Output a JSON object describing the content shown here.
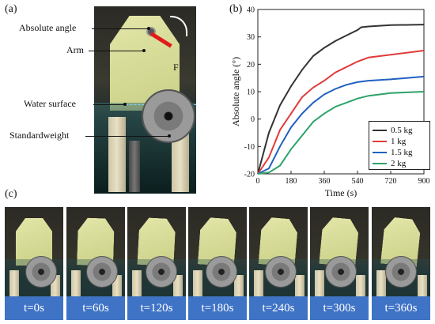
{
  "panels": {
    "a": "(a)",
    "b": "(b)",
    "c": "(c)"
  },
  "annotations": {
    "absolute_angle": "Absolute angle",
    "arm": "Arm",
    "water_surface": "Water surface",
    "standard_weight": "Standardweight",
    "force": "F"
  },
  "chart_data": {
    "type": "line",
    "title": "",
    "xlabel": "Time (s)",
    "ylabel": "Absolute angle (°)",
    "xlim": [
      0,
      900
    ],
    "ylim": [
      -20,
      40
    ],
    "x_ticks": [
      0,
      180,
      360,
      540,
      720,
      900
    ],
    "y_ticks": [
      -20,
      -10,
      0,
      10,
      20,
      30,
      40
    ],
    "grid": false,
    "legend_position": "bottom-right",
    "series": [
      {
        "name": "0.5 kg",
        "color": "#333333",
        "x": [
          0,
          60,
          120,
          180,
          240,
          300,
          360,
          420,
          480,
          540,
          560,
          600,
          720,
          900
        ],
        "y": [
          -20,
          -5,
          5,
          12,
          18,
          23,
          26,
          28.5,
          30.5,
          32.5,
          33.5,
          33.8,
          34.3,
          34.5
        ]
      },
      {
        "name": "1 kg",
        "color": "#e23a3a",
        "x": [
          0,
          60,
          120,
          180,
          240,
          300,
          360,
          420,
          480,
          540,
          600,
          720,
          900
        ],
        "y": [
          -20,
          -14,
          -4,
          2,
          8,
          11.5,
          14,
          17,
          19,
          21,
          22.5,
          23.5,
          25
        ]
      },
      {
        "name": "1.5 kg",
        "color": "#2060c0",
        "x": [
          0,
          60,
          120,
          180,
          240,
          300,
          360,
          420,
          480,
          540,
          600,
          720,
          900
        ],
        "y": [
          -20,
          -18,
          -10,
          -3,
          2,
          6,
          9,
          11,
          12.5,
          13.5,
          14,
          14.5,
          15.5
        ]
      },
      {
        "name": "2 kg",
        "color": "#2ea26a",
        "x": [
          0,
          60,
          120,
          180,
          240,
          300,
          360,
          420,
          480,
          540,
          600,
          720,
          900
        ],
        "y": [
          -20,
          -19.5,
          -17,
          -11,
          -6,
          -1,
          2,
          4.5,
          6,
          7.5,
          8.5,
          9.5,
          10
        ]
      }
    ]
  },
  "frames": [
    {
      "caption": "t=0s",
      "angle": 0
    },
    {
      "caption": "t=60s",
      "angle": 6
    },
    {
      "caption": "t=120s",
      "angle": 10
    },
    {
      "caption": "t=180s",
      "angle": 14
    },
    {
      "caption": "t=240s",
      "angle": 16
    },
    {
      "caption": "t=300s",
      "angle": 18
    },
    {
      "caption": "t=360s",
      "angle": 20
    }
  ],
  "colors": {
    "caption_bg": "#3f73c6",
    "arm": "#e01b1b"
  }
}
